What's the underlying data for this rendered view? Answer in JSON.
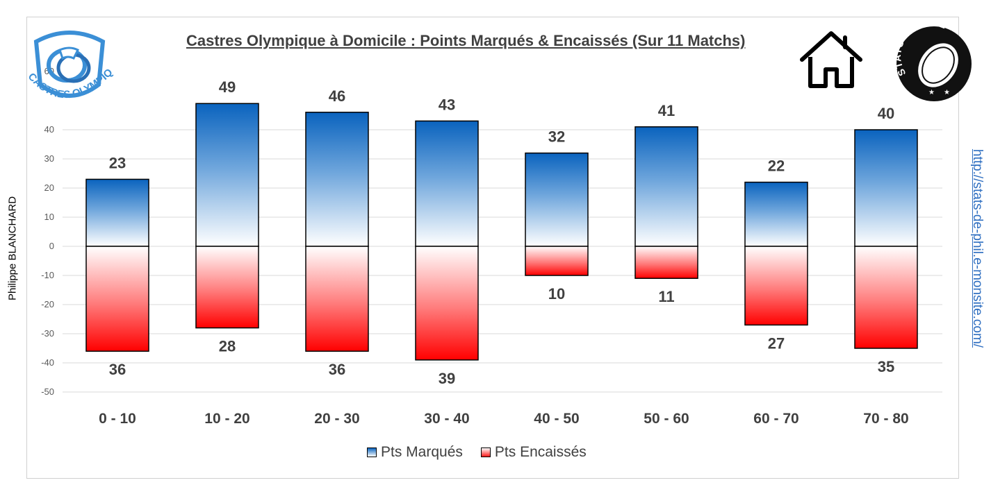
{
  "title": "Castres Olympique à Domicile : Points Marqués & Encaissés (Sur 11 Matchs)",
  "author": "Philippe BLANCHARD",
  "site": "http://stats-de-phil.e-monsite.com/",
  "logos": {
    "team": "CASTRES OLYMPIQUE",
    "brand": "STATS DE PHIL",
    "home_icon": "house-icon"
  },
  "colors": {
    "marques": "#0a63be",
    "encaisses": "#ff1a1a"
  },
  "chart_data": {
    "type": "bar",
    "categories": [
      "0 - 10",
      "10 - 20",
      "20 - 30",
      "30 - 40",
      "40 - 50",
      "50 - 60",
      "60 - 70",
      "70 - 80"
    ],
    "series": [
      {
        "name": "Pts Marqués",
        "values": [
          23,
          49,
          46,
          43,
          32,
          41,
          22,
          40
        ]
      },
      {
        "name": "Pts Encaissés",
        "values": [
          36,
          28,
          36,
          39,
          10,
          11,
          27,
          35
        ]
      }
    ],
    "ylim": [
      -50,
      60
    ],
    "yticks": [
      -50,
      -40,
      -30,
      -20,
      -10,
      0,
      10,
      20,
      30,
      40,
      60
    ],
    "grid": true,
    "legend": "bottom"
  }
}
